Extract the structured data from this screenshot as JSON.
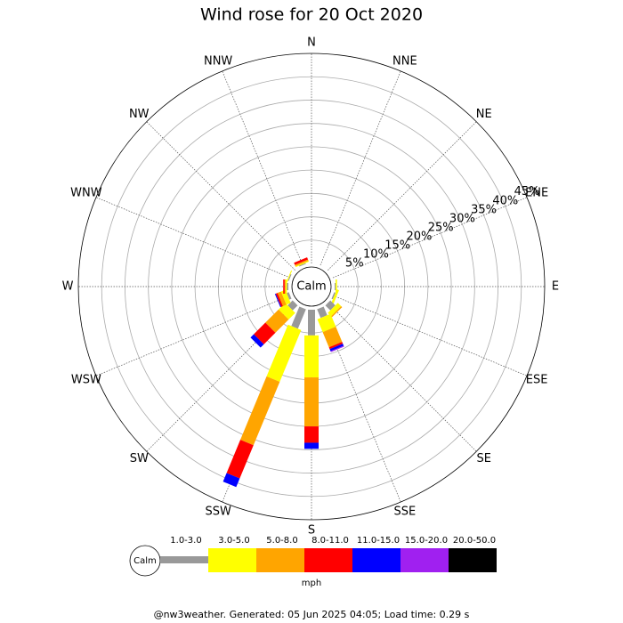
{
  "chart_data": {
    "type": "windrose",
    "title": "Wind rose for 20 Oct 2020",
    "calm_label": "Calm",
    "categories": [
      "N",
      "NNE",
      "NE",
      "ENE",
      "E",
      "ESE",
      "SE",
      "SSE",
      "S",
      "SSW",
      "SW",
      "WSW",
      "W",
      "WNW",
      "NW",
      "NNW"
    ],
    "ylim": [
      0,
      45
    ],
    "yticks": [
      {
        "value": 5,
        "label": "5%"
      },
      {
        "value": 10,
        "label": "10%"
      },
      {
        "value": 15,
        "label": "15%"
      },
      {
        "value": 20,
        "label": "20%"
      },
      {
        "value": 25,
        "label": "25%"
      },
      {
        "value": 30,
        "label": "30%"
      },
      {
        "value": 35,
        "label": "35%"
      },
      {
        "value": 40,
        "label": "40%"
      },
      {
        "value": 45,
        "label": "45%"
      }
    ],
    "series": [
      {
        "name": "1.0-3.0",
        "color": "#999999",
        "values": [
          0,
          0,
          0,
          0,
          0.2,
          0.3,
          1.5,
          2,
          5.5,
          4.5,
          1.5,
          0.5,
          0.3,
          0.2,
          0,
          0.2
        ]
      },
      {
        "name": "3.0-5.0",
        "color": "#ffff00",
        "values": [
          0,
          0,
          0,
          0,
          0.3,
          0.5,
          1,
          3,
          9,
          12,
          2,
          1,
          0.3,
          0.2,
          0,
          0.2
        ]
      },
      {
        "name": "5.0-8.0",
        "color": "#ffa500",
        "values": [
          0,
          0,
          0,
          0,
          0,
          0,
          0.3,
          3.5,
          10.5,
          14.7,
          4,
          0.8,
          0.2,
          0,
          0,
          0.3
        ]
      },
      {
        "name": "8.0-11.0",
        "color": "#ff0000",
        "values": [
          0,
          0,
          0,
          0,
          0,
          0,
          0,
          0.4,
          3.5,
          7.7,
          3.5,
          0.4,
          0.3,
          0,
          0,
          0.5
        ]
      },
      {
        "name": "11.0-15.0",
        "color": "#0000ff",
        "values": [
          0,
          0,
          0,
          0,
          0,
          0,
          0,
          0.5,
          1.3,
          2,
          1,
          0.2,
          0,
          0,
          0,
          0
        ]
      },
      {
        "name": "15.0-20.0",
        "color": "#a020f0",
        "values": [
          0,
          0,
          0,
          0,
          0,
          0,
          0,
          0.2,
          0,
          0,
          0,
          0,
          0,
          0,
          0,
          0
        ]
      },
      {
        "name": "20.0-50.0",
        "color": "#000000",
        "values": [
          0,
          0,
          0,
          0,
          0,
          0,
          0,
          0,
          0,
          0,
          0,
          0,
          0,
          0,
          0,
          0
        ]
      }
    ],
    "legend_unit": "mph",
    "footer": "@nw3weather. Generated: 05 Jun 2025 04:05; Load time: 0.29 s"
  }
}
